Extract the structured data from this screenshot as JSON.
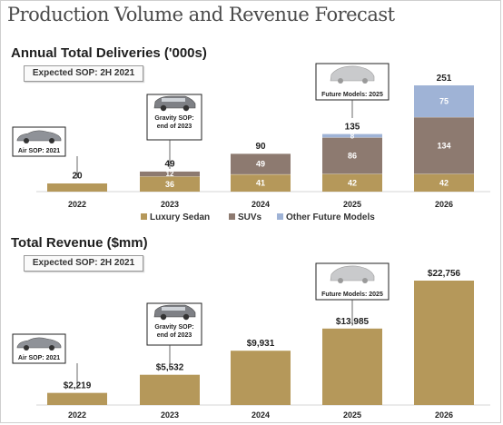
{
  "page_title": "Production Volume and Revenue Forecast",
  "colors": {
    "luxury_sedan": "#b5985a",
    "suvs": "#8d7a70",
    "other_future_models": "#9fb3d6"
  },
  "deliveries": {
    "title": "Annual Total Deliveries ('000s)",
    "sop_note": "Expected SOP:  2H 2021",
    "legend": [
      "Luxury Sedan",
      "SUVs",
      "Other Future Models"
    ],
    "callouts": {
      "air": "Air SOP: 2021",
      "gravity": "Gravity SOP: end of 2023",
      "future": "Future Models: 2025"
    }
  },
  "revenue": {
    "title": "Total Revenue ($mm)",
    "sop_note": "Expected SOP:  2H 2021",
    "callouts": {
      "air": "Air SOP: 2021",
      "gravity": "Gravity SOP: end of 2023",
      "future": "Future Models: 2025"
    }
  },
  "chart_data": [
    {
      "type": "bar",
      "stacked": true,
      "title": "Annual Total Deliveries ('000s)",
      "categories": [
        "2022",
        "2023",
        "2024",
        "2025",
        "2026"
      ],
      "series": [
        {
          "name": "Luxury Sedan",
          "values": [
            20,
            36,
            41,
            42,
            42
          ]
        },
        {
          "name": "SUVs",
          "values": [
            0,
            12,
            49,
            86,
            134
          ]
        },
        {
          "name": "Other Future Models",
          "values": [
            0,
            0,
            0,
            8,
            75
          ]
        }
      ],
      "totals": [
        20,
        49,
        90,
        135,
        251
      ],
      "segment_labels": [
        [
          null,
          null,
          null
        ],
        [
          "36",
          "12",
          null
        ],
        [
          "41",
          "49",
          null
        ],
        [
          "42",
          "86",
          "8"
        ],
        [
          "42",
          "134",
          "75"
        ]
      ],
      "legend": "bottom"
    },
    {
      "type": "bar",
      "title": "Total Revenue ($mm)",
      "categories": [
        "2022",
        "2023",
        "2024",
        "2025",
        "2026"
      ],
      "values": [
        2219,
        5532,
        9931,
        13985,
        22756
      ],
      "value_labels": [
        "$2,219",
        "$5,532",
        "$9,931",
        "$13,985",
        "$22,756"
      ]
    }
  ]
}
